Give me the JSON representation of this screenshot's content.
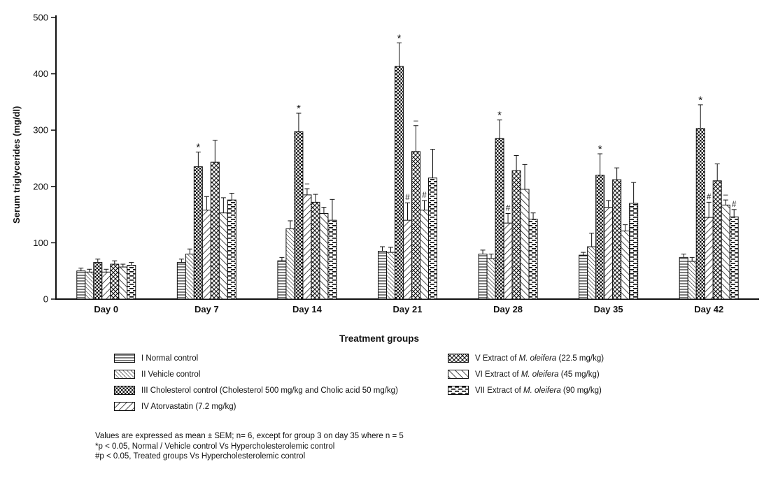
{
  "chart_data": {
    "type": "bar",
    "title": "",
    "xlabel": "Treatment groups",
    "ylabel": "Serum triglycerides (mg/dl)",
    "ylim": [
      0,
      500
    ],
    "yticks": [
      0,
      100,
      200,
      300,
      400,
      500
    ],
    "grid": false,
    "legend_position": "bottom",
    "error_bars": "SEM, upper only",
    "categories": [
      "Day 0",
      "Day 7",
      "Day 14",
      "Day 21",
      "Day 28",
      "Day 35",
      "Day 42"
    ],
    "series": [
      {
        "name": "I Normal control",
        "pattern": "hlines",
        "values": [
          50,
          65,
          68,
          85,
          80,
          78,
          74
        ],
        "errors": [
          5,
          6,
          6,
          8,
          7,
          5,
          6
        ],
        "annotations": [
          "",
          "",
          "",
          "",
          "",
          "",
          ""
        ]
      },
      {
        "name": "II Vehicle control",
        "pattern": "bdiag_fine",
        "values": [
          48,
          80,
          125,
          83,
          72,
          93,
          67
        ],
        "errors": [
          5,
          9,
          14,
          9,
          8,
          24,
          7
        ],
        "annotations": [
          "",
          "",
          "",
          "",
          "",
          "",
          ""
        ]
      },
      {
        "name": "III Cholesterol control (Cholesterol 500 mg/kg and Cholic acid 50 mg/kg)",
        "pattern": "checker",
        "values": [
          65,
          235,
          297,
          413,
          285,
          220,
          303
        ],
        "errors": [
          6,
          26,
          33,
          42,
          33,
          38,
          42
        ],
        "annotations": [
          "",
          "*",
          "*",
          "*",
          "*",
          "*",
          "*"
        ]
      },
      {
        "name": "IV Atorvastatin (7.2 mg/kg)",
        "pattern": "fdiag_wide",
        "values": [
          48,
          158,
          185,
          140,
          135,
          163,
          145
        ],
        "errors": [
          5,
          24,
          11,
          31,
          17,
          12,
          27
        ],
        "annotations": [
          "",
          "",
          "–",
          "#",
          "#",
          "",
          "#"
        ]
      },
      {
        "name": "V Extract of M. oleifera (22.5 mg/kg)",
        "pattern": "diamond",
        "values": [
          62,
          243,
          172,
          262,
          228,
          212,
          210
        ],
        "errors": [
          6,
          39,
          14,
          46,
          27,
          21,
          30
        ],
        "annotations": [
          "",
          "",
          "",
          "–",
          "",
          "",
          ""
        ]
      },
      {
        "name": "VI Extract of M. oleifera (45 mg/kg)",
        "pattern": "bdiag_wide",
        "values": [
          57,
          153,
          152,
          158,
          195,
          121,
          167
        ],
        "errors": [
          5,
          27,
          11,
          17,
          44,
          11,
          9
        ],
        "annotations": [
          "",
          "",
          "",
          "#",
          "",
          "",
          "–"
        ]
      },
      {
        "name": "VII Extract of M. oleifera (90 mg/kg)",
        "pattern": "hdash",
        "values": [
          60,
          176,
          140,
          215,
          142,
          170,
          146
        ],
        "errors": [
          5,
          12,
          37,
          51,
          11,
          37,
          13
        ],
        "annotations": [
          "",
          "",
          "",
          "",
          "",
          "",
          "#"
        ]
      }
    ]
  },
  "legend": {
    "items": [
      {
        "prefix": "I Normal control",
        "italic": "",
        "suffix": "",
        "pattern": "hlines"
      },
      {
        "prefix": "II Vehicle control",
        "italic": "",
        "suffix": "",
        "pattern": "bdiag_fine"
      },
      {
        "prefix": "III Cholesterol control (Cholesterol 500 mg/kg and Cholic acid 50 mg/kg)",
        "italic": "",
        "suffix": "",
        "pattern": "checker"
      },
      {
        "prefix": "IV Atorvastatin (7.2 mg/kg)",
        "italic": "",
        "suffix": "",
        "pattern": "fdiag_wide"
      },
      {
        "prefix": "V Extract of ",
        "italic": "M. oleifera",
        "suffix": " (22.5 mg/kg)",
        "pattern": "diamond"
      },
      {
        "prefix": "VI Extract of ",
        "italic": "M. oleifera",
        "suffix": " (45 mg/kg)",
        "pattern": "bdiag_wide"
      },
      {
        "prefix": "VII Extract of ",
        "italic": "M. oleifera",
        "suffix": " (90 mg/kg)",
        "pattern": "hdash"
      }
    ]
  },
  "notes": [
    "Values are expressed as mean ± SEM; n= 6, except for group 3 on day 35 where n = 5",
    "*p < 0.05, Normal / Vehicle control Vs Hypercholesterolemic control",
    "#p < 0.05, Treated groups Vs Hypercholesterolemic control"
  ]
}
